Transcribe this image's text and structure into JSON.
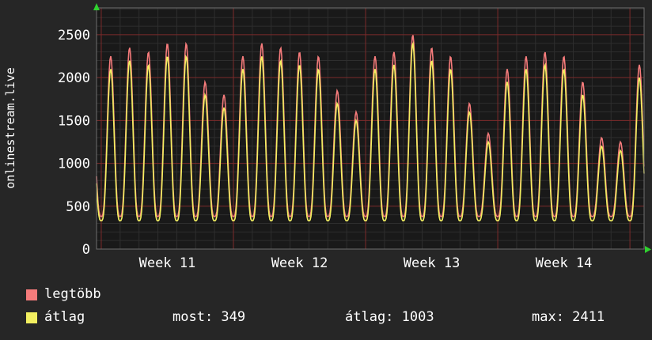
{
  "legend": {
    "items": [
      {
        "label": "legtöbb",
        "color": "#f57b7b"
      },
      {
        "label": "átlag",
        "color": "#f2ef60"
      }
    ]
  },
  "stats_row": {
    "most": "most: 349",
    "atlag": "átlag: 1003",
    "max": "max: 2411"
  },
  "chart_data": {
    "type": "line",
    "title": "",
    "ylabel": "onlinestream.live",
    "xlabel": "",
    "x_week_labels": [
      "Week 11",
      "Week 12",
      "Week 13",
      "Week 14"
    ],
    "y_ticks": [
      0,
      500,
      1000,
      1500,
      2000,
      2500
    ],
    "ylim": [
      0,
      2813
    ],
    "days_visible": 29,
    "grid": true,
    "legend_position": "bottom-left",
    "stats": {
      "most": 349,
      "atlag": 1003,
      "max": 2411
    },
    "colors": {
      "page_bg": "#262626",
      "plot_bg": "#191919",
      "grid_minor": "#2e2e2e",
      "grid_major": "#7d2b2b",
      "border": "#6f6f6f",
      "arrow": "#2fd12f",
      "text": "#ffffff"
    },
    "series": [
      {
        "name": "legtöbb",
        "color": "#f57b7b",
        "trough": 380,
        "daily_peaks": [
          1800,
          2250,
          2350,
          2300,
          2400,
          2400,
          1950,
          1800,
          2250,
          2400,
          2350,
          2300,
          2250,
          1850,
          1600,
          2250,
          2300,
          2500,
          2350,
          2250,
          1700,
          1350,
          2100,
          2250,
          2300,
          2250,
          1950,
          1300,
          1250,
          2150
        ]
      },
      {
        "name": "átlag",
        "color": "#f2ef60",
        "trough": 330,
        "daily_peaks": [
          1650,
          2100,
          2200,
          2150,
          2250,
          2250,
          1800,
          1650,
          2100,
          2250,
          2200,
          2150,
          2100,
          1700,
          1500,
          2100,
          2150,
          2400,
          2200,
          2100,
          1600,
          1250,
          1950,
          2100,
          2150,
          2100,
          1800,
          1200,
          1150,
          2000
        ]
      }
    ]
  }
}
